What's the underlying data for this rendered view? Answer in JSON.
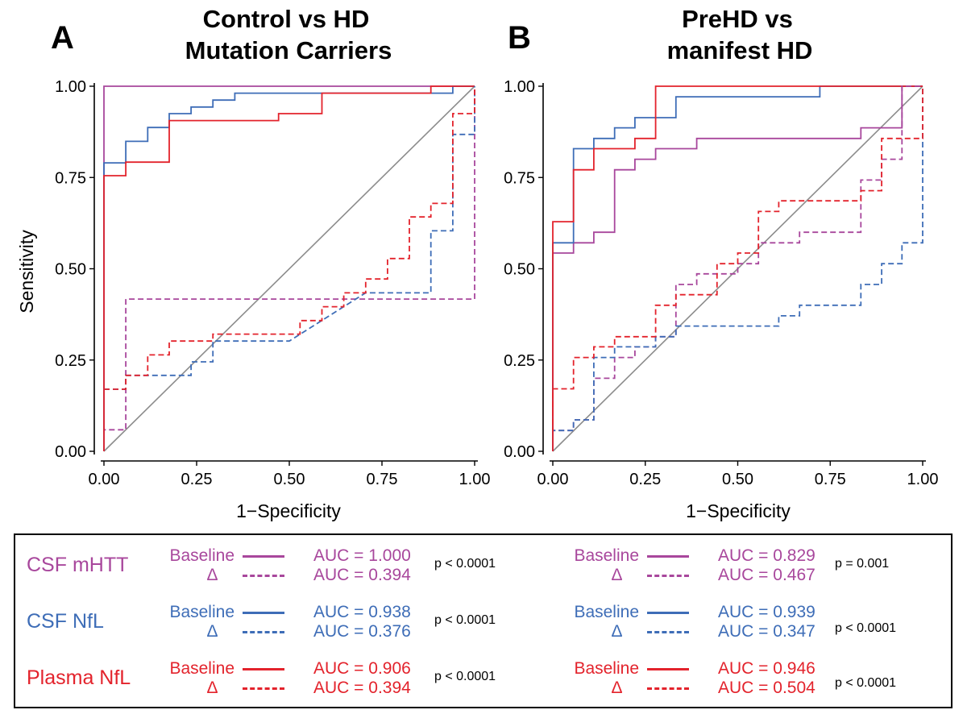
{
  "colors": {
    "mhtt": "#a8479c",
    "csf_nfl": "#3e6db7",
    "plasma_nfl": "#e3232c",
    "diagonal": "#8c8c8c"
  },
  "axis_ticks": [
    "0.00",
    "0.25",
    "0.50",
    "0.75",
    "1.00"
  ],
  "chart_data": [
    {
      "type": "line",
      "panel_letter": "A",
      "title": "Control vs HD Mutation Carriers",
      "title_lines": [
        "Control vs HD",
        "Mutation Carriers"
      ],
      "xlabel": "1−Specificity",
      "ylabel": "Sensitivity",
      "xlim": [
        0,
        1
      ],
      "ylim": [
        0,
        1
      ],
      "x_ticks": [
        "0.00",
        "0.25",
        "0.50",
        "0.75",
        "1.00"
      ],
      "y_ticks": [
        "0.00",
        "0.25",
        "0.50",
        "0.75",
        "1.00"
      ],
      "series": [
        {
          "name": "CSF mHTT Baseline",
          "color": "#a8479c",
          "dash": false,
          "points": [
            [
              0,
              0
            ],
            [
              0,
              1
            ],
            [
              1,
              1
            ]
          ]
        },
        {
          "name": "CSF NfL Baseline",
          "color": "#3e6db7",
          "dash": false,
          "points": [
            [
              0,
              0
            ],
            [
              0,
              0.79
            ],
            [
              0.059,
              0.79
            ],
            [
              0.059,
              0.849
            ],
            [
              0.118,
              0.849
            ],
            [
              0.118,
              0.887
            ],
            [
              0.176,
              0.887
            ],
            [
              0.176,
              0.925
            ],
            [
              0.235,
              0.925
            ],
            [
              0.235,
              0.943
            ],
            [
              0.294,
              0.943
            ],
            [
              0.294,
              0.962
            ],
            [
              0.353,
              0.962
            ],
            [
              0.353,
              0.981
            ],
            [
              0.941,
              0.981
            ],
            [
              0.941,
              1
            ],
            [
              1,
              1
            ]
          ]
        },
        {
          "name": "Plasma NfL Baseline",
          "color": "#e3232c",
          "dash": false,
          "points": [
            [
              0,
              0
            ],
            [
              0,
              0.755
            ],
            [
              0.059,
              0.755
            ],
            [
              0.059,
              0.792
            ],
            [
              0.176,
              0.792
            ],
            [
              0.176,
              0.906
            ],
            [
              0.471,
              0.906
            ],
            [
              0.471,
              0.925
            ],
            [
              0.588,
              0.925
            ],
            [
              0.588,
              0.981
            ],
            [
              0.882,
              0.981
            ],
            [
              0.882,
              1
            ],
            [
              1,
              1
            ]
          ]
        },
        {
          "name": "CSF mHTT Δ",
          "color": "#a8479c",
          "dash": true,
          "points": [
            [
              0,
              0
            ],
            [
              0,
              0.059
            ],
            [
              0.059,
              0.059
            ],
            [
              0.059,
              0.417
            ],
            [
              1,
              0.417
            ],
            [
              1,
              1
            ]
          ]
        },
        {
          "name": "CSF NfL Δ",
          "color": "#3e6db7",
          "dash": true,
          "points": [
            [
              0,
              0
            ],
            [
              0,
              0.17
            ],
            [
              0.059,
              0.17
            ],
            [
              0.059,
              0.208
            ],
            [
              0.118,
              0.208
            ],
            [
              0.118,
              0.208
            ],
            [
              0.235,
              0.208
            ],
            [
              0.235,
              0.245
            ],
            [
              0.294,
              0.245
            ],
            [
              0.294,
              0.302
            ],
            [
              0.5,
              0.302
            ],
            [
              0.706,
              0.434
            ],
            [
              0.882,
              0.434
            ],
            [
              0.882,
              0.604
            ],
            [
              0.941,
              0.604
            ],
            [
              0.941,
              0.868
            ],
            [
              1,
              0.868
            ],
            [
              1,
              1
            ]
          ]
        },
        {
          "name": "Plasma NfL Δ",
          "color": "#e3232c",
          "dash": true,
          "points": [
            [
              0,
              0
            ],
            [
              0,
              0.17
            ],
            [
              0.059,
              0.17
            ],
            [
              0.059,
              0.208
            ],
            [
              0.118,
              0.208
            ],
            [
              0.118,
              0.264
            ],
            [
              0.176,
              0.264
            ],
            [
              0.176,
              0.302
            ],
            [
              0.294,
              0.302
            ],
            [
              0.294,
              0.321
            ],
            [
              0.529,
              0.321
            ],
            [
              0.529,
              0.358
            ],
            [
              0.588,
              0.358
            ],
            [
              0.588,
              0.396
            ],
            [
              0.647,
              0.396
            ],
            [
              0.647,
              0.434
            ],
            [
              0.706,
              0.434
            ],
            [
              0.706,
              0.472
            ],
            [
              0.765,
              0.472
            ],
            [
              0.765,
              0.528
            ],
            [
              0.824,
              0.528
            ],
            [
              0.824,
              0.642
            ],
            [
              0.882,
              0.642
            ],
            [
              0.882,
              0.679
            ],
            [
              0.941,
              0.679
            ],
            [
              0.941,
              0.925
            ],
            [
              1,
              0.925
            ],
            [
              1,
              1
            ]
          ]
        }
      ]
    },
    {
      "type": "line",
      "panel_letter": "B",
      "title": "PreHD vs manifest HD",
      "title_lines": [
        "PreHD vs",
        "manifest HD"
      ],
      "xlabel": "1−Specificity",
      "ylabel": "",
      "xlim": [
        0,
        1
      ],
      "ylim": [
        0,
        1
      ],
      "x_ticks": [
        "0.00",
        "0.25",
        "0.50",
        "0.75",
        "1.00"
      ],
      "y_ticks": [
        "0.00",
        "0.25",
        "0.50",
        "0.75",
        "1.00"
      ],
      "series": [
        {
          "name": "CSF mHTT Baseline",
          "color": "#a8479c",
          "dash": false,
          "points": [
            [
              0,
              0
            ],
            [
              0,
              0.543
            ],
            [
              0.056,
              0.543
            ],
            [
              0.056,
              0.571
            ],
            [
              0.111,
              0.571
            ],
            [
              0.111,
              0.6
            ],
            [
              0.167,
              0.6
            ],
            [
              0.167,
              0.771
            ],
            [
              0.222,
              0.771
            ],
            [
              0.222,
              0.8
            ],
            [
              0.278,
              0.8
            ],
            [
              0.278,
              0.829
            ],
            [
              0.389,
              0.829
            ],
            [
              0.389,
              0.857
            ],
            [
              0.833,
              0.857
            ],
            [
              0.833,
              0.886
            ],
            [
              0.944,
              0.886
            ],
            [
              0.944,
              1
            ],
            [
              1,
              1
            ]
          ]
        },
        {
          "name": "CSF NfL Baseline",
          "color": "#3e6db7",
          "dash": false,
          "points": [
            [
              0,
              0
            ],
            [
              0,
              0.571
            ],
            [
              0.056,
              0.571
            ],
            [
              0.056,
              0.829
            ],
            [
              0.111,
              0.829
            ],
            [
              0.111,
              0.857
            ],
            [
              0.167,
              0.857
            ],
            [
              0.167,
              0.886
            ],
            [
              0.222,
              0.886
            ],
            [
              0.222,
              0.914
            ],
            [
              0.333,
              0.914
            ],
            [
              0.333,
              0.971
            ],
            [
              0.722,
              0.971
            ],
            [
              0.722,
              1
            ],
            [
              1,
              1
            ]
          ]
        },
        {
          "name": "Plasma NfL Baseline",
          "color": "#e3232c",
          "dash": false,
          "points": [
            [
              0,
              0
            ],
            [
              0,
              0.629
            ],
            [
              0.056,
              0.629
            ],
            [
              0.056,
              0.771
            ],
            [
              0.111,
              0.771
            ],
            [
              0.111,
              0.829
            ],
            [
              0.222,
              0.829
            ],
            [
              0.222,
              0.857
            ],
            [
              0.278,
              0.857
            ],
            [
              0.278,
              1
            ],
            [
              1,
              1
            ]
          ]
        },
        {
          "name": "CSF mHTT Δ",
          "color": "#a8479c",
          "dash": true,
          "points": [
            [
              0,
              0
            ],
            [
              0,
              0.057
            ],
            [
              0.056,
              0.057
            ],
            [
              0.056,
              0.086
            ],
            [
              0.111,
              0.086
            ],
            [
              0.111,
              0.2
            ],
            [
              0.167,
              0.2
            ],
            [
              0.167,
              0.257
            ],
            [
              0.222,
              0.257
            ],
            [
              0.222,
              0.286
            ],
            [
              0.278,
              0.286
            ],
            [
              0.278,
              0.314
            ],
            [
              0.333,
              0.314
            ],
            [
              0.333,
              0.457
            ],
            [
              0.389,
              0.457
            ],
            [
              0.389,
              0.486
            ],
            [
              0.5,
              0.486
            ],
            [
              0.5,
              0.514
            ],
            [
              0.556,
              0.514
            ],
            [
              0.556,
              0.571
            ],
            [
              0.667,
              0.571
            ],
            [
              0.667,
              0.6
            ],
            [
              0.833,
              0.6
            ],
            [
              0.833,
              0.743
            ],
            [
              0.889,
              0.743
            ],
            [
              0.889,
              0.8
            ],
            [
              0.944,
              0.8
            ],
            [
              0.944,
              1
            ],
            [
              1,
              1
            ]
          ]
        },
        {
          "name": "CSF NfL Δ",
          "color": "#3e6db7",
          "dash": true,
          "points": [
            [
              0,
              0
            ],
            [
              0,
              0.057
            ],
            [
              0.056,
              0.057
            ],
            [
              0.056,
              0.086
            ],
            [
              0.111,
              0.086
            ],
            [
              0.111,
              0.257
            ],
            [
              0.167,
              0.257
            ],
            [
              0.167,
              0.286
            ],
            [
              0.278,
              0.286
            ],
            [
              0.278,
              0.314
            ],
            [
              0.333,
              0.314
            ],
            [
              0.333,
              0.343
            ],
            [
              0.611,
              0.343
            ],
            [
              0.611,
              0.371
            ],
            [
              0.667,
              0.371
            ],
            [
              0.667,
              0.4
            ],
            [
              0.833,
              0.4
            ],
            [
              0.833,
              0.457
            ],
            [
              0.889,
              0.457
            ],
            [
              0.889,
              0.514
            ],
            [
              0.944,
              0.514
            ],
            [
              0.944,
              0.571
            ],
            [
              1,
              0.571
            ],
            [
              1,
              1
            ]
          ]
        },
        {
          "name": "Plasma NfL Δ",
          "color": "#e3232c",
          "dash": true,
          "points": [
            [
              0,
              0
            ],
            [
              0,
              0.171
            ],
            [
              0.056,
              0.171
            ],
            [
              0.056,
              0.257
            ],
            [
              0.111,
              0.257
            ],
            [
              0.111,
              0.286
            ],
            [
              0.167,
              0.286
            ],
            [
              0.167,
              0.314
            ],
            [
              0.278,
              0.314
            ],
            [
              0.278,
              0.4
            ],
            [
              0.333,
              0.4
            ],
            [
              0.333,
              0.429
            ],
            [
              0.444,
              0.429
            ],
            [
              0.444,
              0.514
            ],
            [
              0.5,
              0.514
            ],
            [
              0.5,
              0.543
            ],
            [
              0.556,
              0.543
            ],
            [
              0.556,
              0.657
            ],
            [
              0.611,
              0.657
            ],
            [
              0.611,
              0.686
            ],
            [
              0.833,
              0.686
            ],
            [
              0.833,
              0.714
            ],
            [
              0.889,
              0.714
            ],
            [
              0.889,
              0.857
            ],
            [
              0.944,
              0.857
            ],
            [
              1,
              0.857
            ],
            [
              1,
              1
            ]
          ]
        }
      ]
    }
  ],
  "legend": {
    "baseline_label": "Baseline",
    "delta_label": "Δ",
    "rows": [
      {
        "marker": "CSF mHTT",
        "color": "#a8479c",
        "a": {
          "auc_baseline": "AUC = 1.000",
          "auc_delta": "AUC = 0.394",
          "p": "p < 0.0001"
        },
        "b": {
          "auc_baseline": "AUC = 0.829",
          "auc_delta": "AUC = 0.467",
          "p": "p = 0.001"
        }
      },
      {
        "marker": "CSF NfL",
        "color": "#3e6db7",
        "a": {
          "auc_baseline": "AUC = 0.938",
          "auc_delta": "AUC = 0.376",
          "p": "p < 0.0001"
        },
        "b": {
          "auc_baseline": "AUC = 0.939",
          "auc_delta": "AUC = 0.347",
          "p": "p < 0.0001"
        }
      },
      {
        "marker": "Plasma NfL",
        "color": "#e3232c",
        "a": {
          "auc_baseline": "AUC = 0.906",
          "auc_delta": "AUC = 0.394",
          "p": "p < 0.0001"
        },
        "b": {
          "auc_baseline": "AUC = 0.946",
          "auc_delta": "AUC = 0.504",
          "p": "p < 0.0001"
        }
      }
    ]
  }
}
